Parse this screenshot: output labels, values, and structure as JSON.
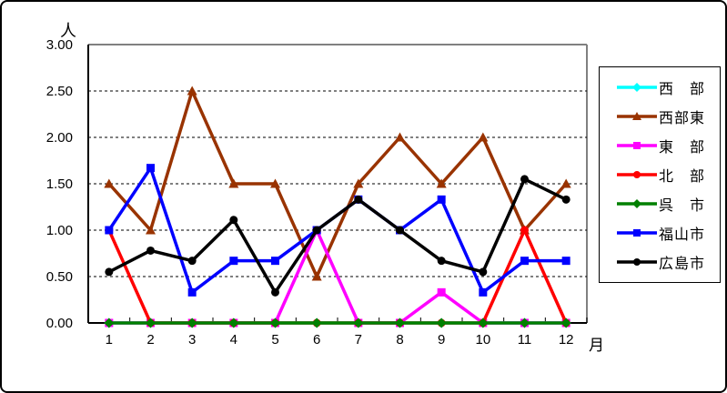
{
  "chart": {
    "y_axis_unit": "人",
    "x_axis_unit": "月",
    "y_ticks": [
      "0.00",
      "0.50",
      "1.00",
      "1.50",
      "2.00",
      "2.50",
      "3.00"
    ],
    "x_ticks": [
      "1",
      "2",
      "3",
      "4",
      "5",
      "6",
      "7",
      "8",
      "9",
      "10",
      "11",
      "12"
    ],
    "plot_border_color": "#808080",
    "axis_color": "#000000",
    "gridline_style": "dashed"
  },
  "chart_data": {
    "type": "line",
    "title": "",
    "xlabel": "月",
    "ylabel": "人",
    "x": [
      1,
      2,
      3,
      4,
      5,
      6,
      7,
      8,
      9,
      10,
      11,
      12
    ],
    "ylim": [
      0,
      3
    ],
    "y_tick_step": 0.5,
    "grid": "horizontal-dashed",
    "legend_position": "right",
    "series": [
      {
        "name": "西　部",
        "color": "#00FFFF",
        "marker": "diamond",
        "values": [
          0,
          0,
          0,
          0,
          0,
          0,
          0,
          0,
          0,
          0,
          0,
          0
        ]
      },
      {
        "name": "西部東",
        "color": "#993300",
        "marker": "triangle",
        "values": [
          1.5,
          1.0,
          2.5,
          1.5,
          1.5,
          0.5,
          1.5,
          2.0,
          1.5,
          2.0,
          1.0,
          1.5
        ]
      },
      {
        "name": "東　部",
        "color": "#FF00FF",
        "marker": "square",
        "values": [
          0,
          0,
          0,
          0,
          0,
          1.0,
          0,
          0,
          0.33,
          0,
          0,
          0
        ]
      },
      {
        "name": "北　部",
        "color": "#FF0000",
        "marker": "circle",
        "values": [
          1.0,
          0,
          0,
          0,
          0,
          0,
          0,
          0,
          0,
          0,
          1.0,
          0
        ]
      },
      {
        "name": "呉　市",
        "color": "#008000",
        "marker": "diamond",
        "values": [
          0,
          0,
          0,
          0,
          0,
          0,
          0,
          0,
          0,
          0,
          0,
          0
        ]
      },
      {
        "name": "福山市",
        "color": "#0000FF",
        "marker": "square",
        "values": [
          1.0,
          1.67,
          0.33,
          0.67,
          0.67,
          1.0,
          1.33,
          1.0,
          1.33,
          0.33,
          0.67,
          0.67
        ]
      },
      {
        "name": "広島市",
        "color": "#000000",
        "marker": "circle",
        "values": [
          0.55,
          0.78,
          0.67,
          1.11,
          0.33,
          1.0,
          1.33,
          1.0,
          0.67,
          0.55,
          1.55,
          1.33
        ]
      }
    ]
  }
}
